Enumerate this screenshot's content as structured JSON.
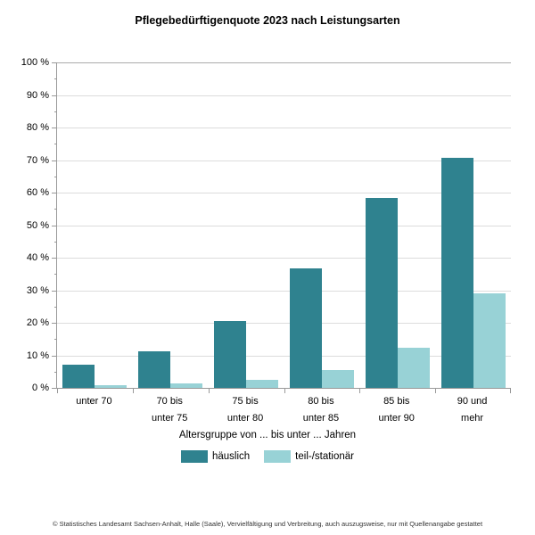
{
  "title": "Pflegebedürftigenquote 2023 nach Leistungsarten",
  "footer": "© Statistisches Landesamt Sachsen-Anhalt, Halle (Saale), Vervielfältigung und Verbreitung, auch auszugsweise, nur mit Quellenangabe gestattet",
  "colors": {
    "haeuslich": "#2f828f",
    "teilstationaer": "#98d2d6",
    "grid": "#dcdcdc",
    "grid_top": "#ababab",
    "axis": "#999999"
  },
  "chart_data": {
    "type": "bar",
    "title": "Pflegebedürftigenquote 2023 nach Leistungsarten",
    "categories": [
      "unter 70",
      "70 bis unter 75",
      "75 bis unter 80",
      "80 bis unter 85",
      "85 bis unter 90",
      "90 und mehr"
    ],
    "category_lines": [
      [
        "unter 70"
      ],
      [
        "70 bis",
        "unter 75"
      ],
      [
        "75 bis",
        "unter 80"
      ],
      [
        "80 bis",
        "unter 85"
      ],
      [
        "85 bis",
        "unter 90"
      ],
      [
        "90 und",
        "mehr"
      ]
    ],
    "series": [
      {
        "name": "häuslich",
        "values": [
          7.0,
          11.2,
          20.5,
          36.7,
          58.4,
          70.8
        ],
        "color": "#2f828f"
      },
      {
        "name": "teil-/stationär",
        "values": [
          0.9,
          1.4,
          2.6,
          5.6,
          12.4,
          29.0
        ],
        "color": "#98d2d6"
      }
    ],
    "xlabel": "Altersgruppe von ... bis unter ... Jahren",
    "ylabel": "",
    "ylim": [
      0,
      100
    ],
    "ytick_step": 10,
    "ytick_minor_step": 5,
    "yticks": [
      "0 %",
      "10 %",
      "20 %",
      "30 %",
      "40 %",
      "50 %",
      "60 %",
      "70 %",
      "80 %",
      "90 %",
      "100 %"
    ],
    "grid": true,
    "legend_position": "bottom"
  }
}
